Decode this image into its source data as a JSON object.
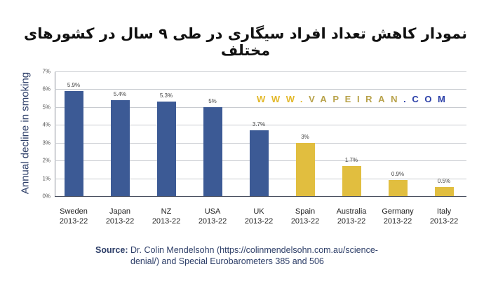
{
  "title": "نمودار کاهش تعداد افراد سیگاری در طی ۹ سال در کشورهای مختلف",
  "watermark": {
    "parts": [
      {
        "text": "WWW.",
        "color": "#e3b92b"
      },
      {
        "text": "VAPEIRAN",
        "color": "#b8a24a"
      },
      {
        "text": ".COM",
        "color": "#2b3fa8"
      }
    ]
  },
  "source": {
    "label": "Source:",
    "text_line1": "Dr. Colin Mendelsohn (https://colinmendelsohn.com.au/science-",
    "text_line2": "denial/) and Special Eurobarometers 385 and 506"
  },
  "colors": {
    "primary_bar": "#3c5a95",
    "secondary_bar": "#e1be3f",
    "axis_text": "#2d3e68"
  },
  "chart_data": {
    "type": "bar",
    "title": "نمودار کاهش تعداد افراد سیگاری در طی ۹ سال در کشورهای مختلف",
    "xlabel": "",
    "ylabel": "Annual decline in smoking",
    "ylim": [
      0,
      7
    ],
    "yticks": [
      "0%",
      "1%",
      "2%",
      "3%",
      "4%",
      "5%",
      "6%",
      "7%"
    ],
    "grid": true,
    "legend": null,
    "categories": [
      "Sweden 2013-22",
      "Japan 2013-22",
      "NZ 2013-22",
      "USA 2013-22",
      "UK 2013-22",
      "Spain 2013-22",
      "Australia 2013-22",
      "Germany 2013-22",
      "Italy 2013-22"
    ],
    "values": [
      5.9,
      5.4,
      5.3,
      5.0,
      3.7,
      3.0,
      1.7,
      0.9,
      0.5
    ],
    "data_labels": [
      "5.9%",
      "5.4%",
      "5.3%",
      "5%",
      "3.7%",
      "3%",
      "1.7%",
      "0.9%",
      "0.5%"
    ],
    "bar_colors": [
      "#3c5a95",
      "#3c5a95",
      "#3c5a95",
      "#3c5a95",
      "#3c5a95",
      "#e1be3f",
      "#e1be3f",
      "#e1be3f",
      "#e1be3f"
    ],
    "annotations": [
      "WWW.VAPEIRAN.COM"
    ]
  },
  "bars": [
    {
      "country": "Sweden",
      "period": "2013-22",
      "value": 5.9,
      "label": "5.9%",
      "color": "#3c5a95"
    },
    {
      "country": "Japan",
      "period": "2013-22",
      "value": 5.4,
      "label": "5.4%",
      "color": "#3c5a95"
    },
    {
      "country": "NZ",
      "period": "2013-22",
      "value": 5.3,
      "label": "5.3%",
      "color": "#3c5a95"
    },
    {
      "country": "USA",
      "period": "2013-22",
      "value": 5.0,
      "label": "5%",
      "color": "#3c5a95"
    },
    {
      "country": "UK",
      "period": "2013-22",
      "value": 3.7,
      "label": "3.7%",
      "color": "#3c5a95"
    },
    {
      "country": "Spain",
      "period": "2013-22",
      "value": 3.0,
      "label": "3%",
      "color": "#e1be3f"
    },
    {
      "country": "Australia",
      "period": "2013-22",
      "value": 1.7,
      "label": "1.7%",
      "color": "#e1be3f"
    },
    {
      "country": "Germany",
      "period": "2013-22",
      "value": 0.9,
      "label": "0.9%",
      "color": "#e1be3f"
    },
    {
      "country": "Italy",
      "period": "2013-22",
      "value": 0.5,
      "label": "0.5%",
      "color": "#e1be3f"
    }
  ]
}
